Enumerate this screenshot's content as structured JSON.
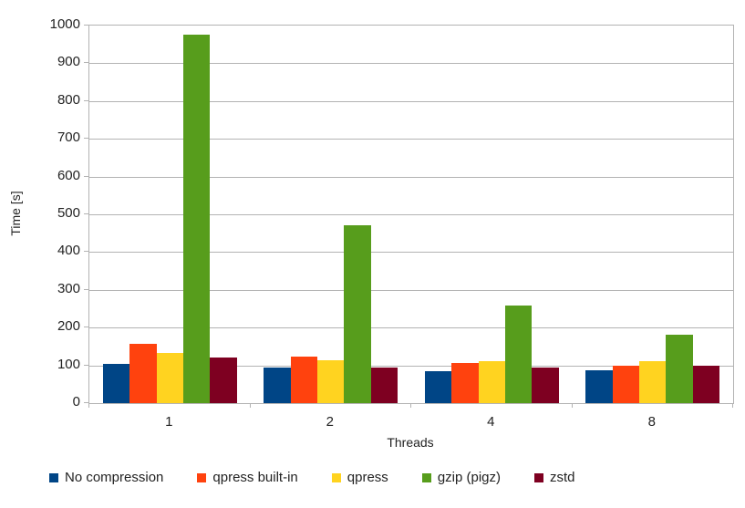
{
  "chart_data": {
    "type": "bar",
    "title": "",
    "xlabel": "Threads",
    "ylabel": "Time [s]",
    "categories": [
      "1",
      "2",
      "4",
      "8"
    ],
    "series": [
      {
        "name": "No compression",
        "color": "#004586",
        "values": [
          104,
          95,
          85,
          88
        ]
      },
      {
        "name": "qpress built-in",
        "color": "#FF420E",
        "values": [
          157,
          123,
          107,
          100
        ]
      },
      {
        "name": "qpress",
        "color": "#FFD320",
        "values": [
          132,
          114,
          110,
          111
        ]
      },
      {
        "name": "gzip (pigz)",
        "color": "#579D1C",
        "values": [
          975,
          472,
          258,
          182
        ]
      },
      {
        "name": "zstd",
        "color": "#7E0021",
        "values": [
          120,
          95,
          94,
          98
        ]
      }
    ],
    "ylim": [
      0,
      1000
    ],
    "yticks": [
      0,
      100,
      200,
      300,
      400,
      500,
      600,
      700,
      800,
      900,
      1000
    ],
    "grid": true,
    "legend_position": "bottom",
    "colors": {
      "grid": "#b3b3b3",
      "text": "#222222",
      "background": "#ffffff"
    }
  }
}
